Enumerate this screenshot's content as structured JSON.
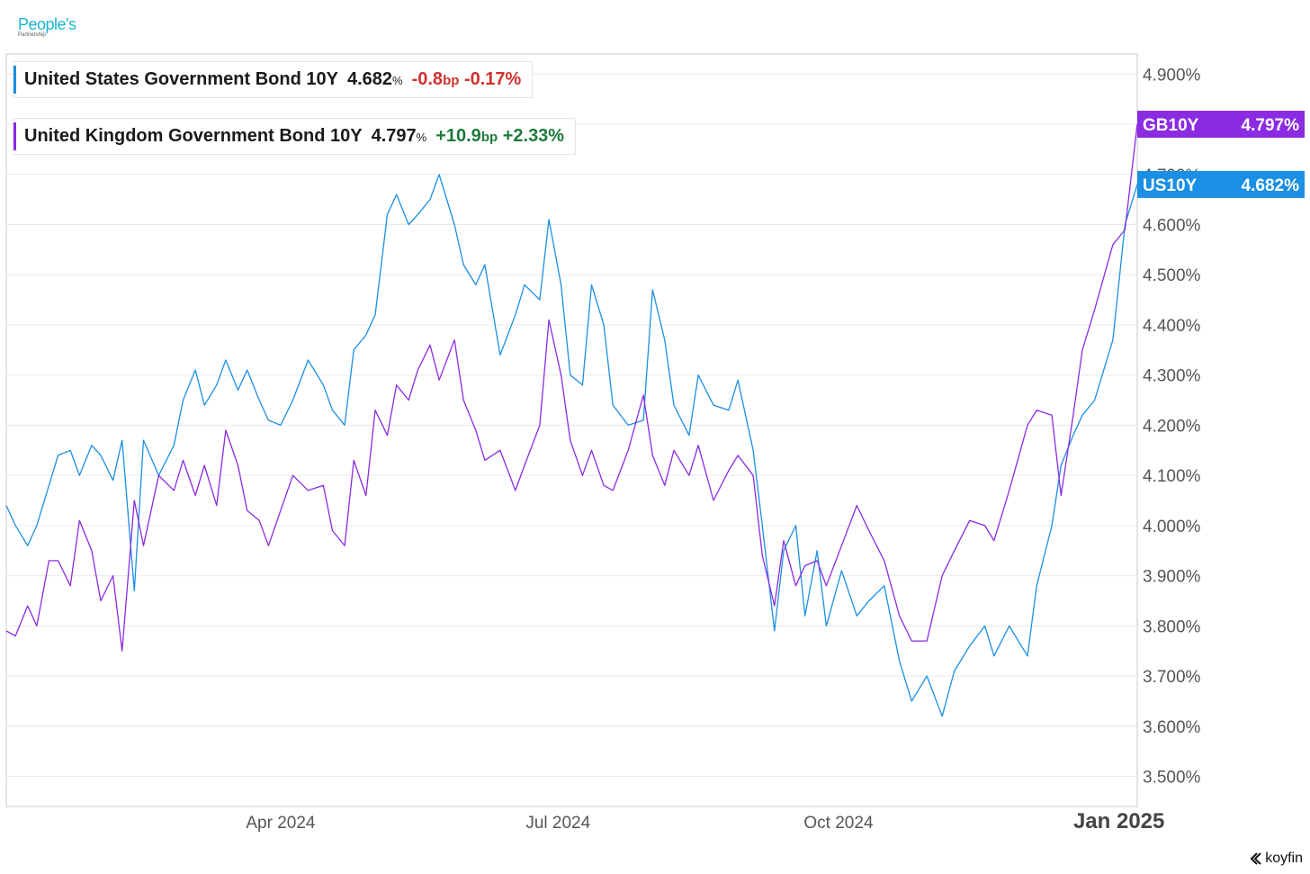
{
  "branding": {
    "logo_line1": "People's",
    "logo_line2": "Partnership",
    "provider": "koyfin"
  },
  "legend": [
    {
      "name": "United States Government Bond 10Y",
      "value": "4.682",
      "unit": "%",
      "change_bp": "-0.8",
      "bp_unit": "bp",
      "change_pct": "-0.17%",
      "direction": "neg",
      "color": "#1a8fe3"
    },
    {
      "name": "United Kingdom Government Bond 10Y",
      "value": "4.797",
      "unit": "%",
      "change_bp": "+10.9",
      "bp_unit": "bp",
      "change_pct": "+2.33%",
      "direction": "pos",
      "color": "#8b2be2"
    }
  ],
  "chart_data": {
    "type": "line",
    "x_ticks": [
      "Apr 2024",
      "Jul 2024",
      "Oct 2024",
      "Jan 2025"
    ],
    "y_ticks": [
      "3.500%",
      "3.600%",
      "3.700%",
      "3.800%",
      "3.900%",
      "4.000%",
      "4.100%",
      "4.200%",
      "4.300%",
      "4.400%",
      "4.500%",
      "4.600%",
      "4.700%",
      "4.800%",
      "4.900%"
    ],
    "ylim": [
      3.44,
      4.94
    ],
    "xlim": [
      "2024-01-02",
      "2025-01-07"
    ],
    "grid": true,
    "axis_position": "right",
    "series": [
      {
        "name": "US10Y",
        "color": "#1a8fe3",
        "last_label": "4.682%",
        "values": [
          [
            "2024-01-02",
            4.04
          ],
          [
            "2024-01-05",
            4.0
          ],
          [
            "2024-01-09",
            3.96
          ],
          [
            "2024-01-12",
            4.0
          ],
          [
            "2024-01-16",
            4.08
          ],
          [
            "2024-01-19",
            4.14
          ],
          [
            "2024-01-23",
            4.15
          ],
          [
            "2024-01-26",
            4.1
          ],
          [
            "2024-01-30",
            4.16
          ],
          [
            "2024-02-02",
            4.14
          ],
          [
            "2024-02-06",
            4.09
          ],
          [
            "2024-02-09",
            4.17
          ],
          [
            "2024-02-13",
            3.87
          ],
          [
            "2024-02-16",
            4.17
          ],
          [
            "2024-02-21",
            4.1
          ],
          [
            "2024-02-26",
            4.16
          ],
          [
            "2024-02-29",
            4.25
          ],
          [
            "2024-03-04",
            4.31
          ],
          [
            "2024-03-07",
            4.24
          ],
          [
            "2024-03-11",
            4.28
          ],
          [
            "2024-03-14",
            4.33
          ],
          [
            "2024-03-18",
            4.27
          ],
          [
            "2024-03-21",
            4.31
          ],
          [
            "2024-03-25",
            4.25
          ],
          [
            "2024-03-28",
            4.21
          ],
          [
            "2024-04-01",
            4.2
          ],
          [
            "2024-04-05",
            4.25
          ],
          [
            "2024-04-10",
            4.33
          ],
          [
            "2024-04-15",
            4.28
          ],
          [
            "2024-04-18",
            4.23
          ],
          [
            "2024-04-22",
            4.2
          ],
          [
            "2024-04-25",
            4.35
          ],
          [
            "2024-04-29",
            4.38
          ],
          [
            "2024-05-02",
            4.42
          ],
          [
            "2024-05-06",
            4.62
          ],
          [
            "2024-05-09",
            4.66
          ],
          [
            "2024-05-13",
            4.6
          ],
          [
            "2024-05-16",
            4.62
          ],
          [
            "2024-05-20",
            4.65
          ],
          [
            "2024-05-23",
            4.7
          ],
          [
            "2024-05-28",
            4.6
          ],
          [
            "2024-05-31",
            4.52
          ],
          [
            "2024-06-04",
            4.48
          ],
          [
            "2024-06-07",
            4.52
          ],
          [
            "2024-06-12",
            4.34
          ],
          [
            "2024-06-17",
            4.42
          ],
          [
            "2024-06-20",
            4.48
          ],
          [
            "2024-06-25",
            4.45
          ],
          [
            "2024-06-28",
            4.61
          ],
          [
            "2024-07-02",
            4.48
          ],
          [
            "2024-07-05",
            4.3
          ],
          [
            "2024-07-09",
            4.28
          ],
          [
            "2024-07-12",
            4.48
          ],
          [
            "2024-07-16",
            4.4
          ],
          [
            "2024-07-19",
            4.24
          ],
          [
            "2024-07-24",
            4.2
          ],
          [
            "2024-07-29",
            4.21
          ],
          [
            "2024-08-01",
            4.47
          ],
          [
            "2024-08-05",
            4.37
          ],
          [
            "2024-08-08",
            4.24
          ],
          [
            "2024-08-13",
            4.18
          ],
          [
            "2024-08-16",
            4.3
          ],
          [
            "2024-08-21",
            4.24
          ],
          [
            "2024-08-26",
            4.23
          ],
          [
            "2024-08-29",
            4.29
          ],
          [
            "2024-09-03",
            4.15
          ],
          [
            "2024-09-06",
            4.0
          ],
          [
            "2024-09-10",
            3.79
          ],
          [
            "2024-09-13",
            3.95
          ],
          [
            "2024-09-17",
            4.0
          ],
          [
            "2024-09-20",
            3.82
          ],
          [
            "2024-09-24",
            3.95
          ],
          [
            "2024-09-27",
            3.8
          ],
          [
            "2024-10-02",
            3.91
          ],
          [
            "2024-10-07",
            3.82
          ],
          [
            "2024-10-11",
            3.85
          ],
          [
            "2024-10-16",
            3.88
          ],
          [
            "2024-10-21",
            3.73
          ],
          [
            "2024-10-25",
            3.65
          ],
          [
            "2024-10-30",
            3.7
          ],
          [
            "2024-11-04",
            3.62
          ],
          [
            "2024-11-08",
            3.71
          ],
          [
            "2024-11-13",
            3.76
          ],
          [
            "2024-11-18",
            3.8
          ],
          [
            "2024-11-21",
            3.74
          ],
          [
            "2024-11-26",
            3.8
          ],
          [
            "2024-12-02",
            3.74
          ],
          [
            "2024-12-05",
            3.88
          ],
          [
            "2024-12-10",
            4.0
          ],
          [
            "2024-12-13",
            4.12
          ],
          [
            "2024-12-17",
            4.18
          ],
          [
            "2024-12-20",
            4.22
          ],
          [
            "2024-12-24",
            4.25
          ],
          [
            "2024-12-30",
            4.37
          ],
          [
            "2025-01-03",
            4.6
          ],
          [
            "2025-01-07",
            4.68
          ]
        ]
      },
      {
        "name": "GB10Y",
        "color": "#8b2be2",
        "last_label": "4.797%",
        "values": [
          [
            "2024-01-02",
            3.79
          ],
          [
            "2024-01-05",
            3.78
          ],
          [
            "2024-01-09",
            3.84
          ],
          [
            "2024-01-12",
            3.8
          ],
          [
            "2024-01-16",
            3.93
          ],
          [
            "2024-01-19",
            3.93
          ],
          [
            "2024-01-23",
            3.88
          ],
          [
            "2024-01-26",
            4.01
          ],
          [
            "2024-01-30",
            3.95
          ],
          [
            "2024-02-02",
            3.85
          ],
          [
            "2024-02-06",
            3.9
          ],
          [
            "2024-02-09",
            3.75
          ],
          [
            "2024-02-13",
            4.05
          ],
          [
            "2024-02-16",
            3.96
          ],
          [
            "2024-02-21",
            4.1
          ],
          [
            "2024-02-26",
            4.07
          ],
          [
            "2024-02-29",
            4.13
          ],
          [
            "2024-03-04",
            4.06
          ],
          [
            "2024-03-07",
            4.12
          ],
          [
            "2024-03-11",
            4.04
          ],
          [
            "2024-03-14",
            4.19
          ],
          [
            "2024-03-18",
            4.12
          ],
          [
            "2024-03-21",
            4.03
          ],
          [
            "2024-03-25",
            4.01
          ],
          [
            "2024-03-28",
            3.96
          ],
          [
            "2024-04-01",
            4.03
          ],
          [
            "2024-04-05",
            4.1
          ],
          [
            "2024-04-10",
            4.07
          ],
          [
            "2024-04-15",
            4.08
          ],
          [
            "2024-04-18",
            3.99
          ],
          [
            "2024-04-22",
            3.96
          ],
          [
            "2024-04-25",
            4.13
          ],
          [
            "2024-04-29",
            4.06
          ],
          [
            "2024-05-02",
            4.23
          ],
          [
            "2024-05-06",
            4.18
          ],
          [
            "2024-05-09",
            4.28
          ],
          [
            "2024-05-13",
            4.25
          ],
          [
            "2024-05-16",
            4.31
          ],
          [
            "2024-05-20",
            4.36
          ],
          [
            "2024-05-23",
            4.29
          ],
          [
            "2024-05-28",
            4.37
          ],
          [
            "2024-05-31",
            4.25
          ],
          [
            "2024-06-04",
            4.19
          ],
          [
            "2024-06-07",
            4.13
          ],
          [
            "2024-06-12",
            4.15
          ],
          [
            "2024-06-17",
            4.07
          ],
          [
            "2024-06-20",
            4.12
          ],
          [
            "2024-06-25",
            4.2
          ],
          [
            "2024-06-28",
            4.41
          ],
          [
            "2024-07-02",
            4.3
          ],
          [
            "2024-07-05",
            4.17
          ],
          [
            "2024-07-09",
            4.1
          ],
          [
            "2024-07-12",
            4.15
          ],
          [
            "2024-07-16",
            4.08
          ],
          [
            "2024-07-19",
            4.07
          ],
          [
            "2024-07-24",
            4.15
          ],
          [
            "2024-07-29",
            4.26
          ],
          [
            "2024-08-01",
            4.14
          ],
          [
            "2024-08-05",
            4.08
          ],
          [
            "2024-08-08",
            4.15
          ],
          [
            "2024-08-13",
            4.1
          ],
          [
            "2024-08-16",
            4.16
          ],
          [
            "2024-08-21",
            4.05
          ],
          [
            "2024-08-26",
            4.11
          ],
          [
            "2024-08-29",
            4.14
          ],
          [
            "2024-09-03",
            4.1
          ],
          [
            "2024-09-06",
            3.94
          ],
          [
            "2024-09-10",
            3.84
          ],
          [
            "2024-09-13",
            3.97
          ],
          [
            "2024-09-17",
            3.88
          ],
          [
            "2024-09-20",
            3.92
          ],
          [
            "2024-09-24",
            3.93
          ],
          [
            "2024-09-27",
            3.88
          ],
          [
            "2024-10-02",
            3.96
          ],
          [
            "2024-10-07",
            4.04
          ],
          [
            "2024-10-11",
            3.99
          ],
          [
            "2024-10-16",
            3.93
          ],
          [
            "2024-10-21",
            3.82
          ],
          [
            "2024-10-25",
            3.77
          ],
          [
            "2024-10-30",
            3.77
          ],
          [
            "2024-11-04",
            3.9
          ],
          [
            "2024-11-08",
            3.95
          ],
          [
            "2024-11-13",
            4.01
          ],
          [
            "2024-11-18",
            4.0
          ],
          [
            "2024-11-21",
            3.97
          ],
          [
            "2024-11-26",
            4.07
          ],
          [
            "2024-12-02",
            4.2
          ],
          [
            "2024-12-05",
            4.23
          ],
          [
            "2024-12-10",
            4.22
          ],
          [
            "2024-12-13",
            4.06
          ],
          [
            "2024-12-17",
            4.22
          ],
          [
            "2024-12-20",
            4.35
          ],
          [
            "2024-12-24",
            4.43
          ],
          [
            "2024-12-30",
            4.56
          ],
          [
            "2025-01-03",
            4.59
          ],
          [
            "2025-01-07",
            4.8
          ]
        ]
      }
    ]
  }
}
